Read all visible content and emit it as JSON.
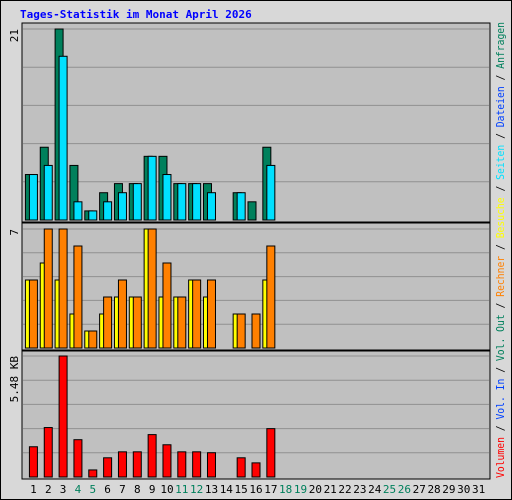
{
  "chart_data": {
    "type": "bar",
    "title": "Tages-Statistik im Monat April 2026",
    "categories": [
      "1",
      "2",
      "3",
      "4",
      "5",
      "6",
      "7",
      "8",
      "9",
      "10",
      "11",
      "12",
      "13",
      "14",
      "15",
      "16",
      "17",
      "18",
      "19",
      "20",
      "21",
      "22",
      "23",
      "24",
      "25",
      "26",
      "27",
      "28",
      "29",
      "30",
      "31"
    ],
    "category_colors": [
      "#000000",
      "#000000",
      "#000000",
      "#00805c",
      "#00805c",
      "#000000",
      "#000000",
      "#000000",
      "#000000",
      "#000000",
      "#00805c",
      "#00805c",
      "#000000",
      "#000000",
      "#000000",
      "#000000",
      "#000000",
      "#00805c",
      "#00805c",
      "#000000",
      "#000000",
      "#000000",
      "#000000",
      "#000000",
      "#00805c",
      "#00805c",
      "#000000",
      "#000000",
      "#000000",
      "#000000",
      "#000000"
    ],
    "legend_separator": " / ",
    "legend": [
      {
        "name": "Volumen",
        "color": "#ff0000"
      },
      {
        "name": "Vol. In",
        "color": "#0040ff"
      },
      {
        "name": "Vol. Out",
        "color": "#00805c"
      },
      {
        "name": "Rechner",
        "color": "#ff8000"
      },
      {
        "name": "Besuche",
        "color": "#ffff00"
      },
      {
        "name": "Seiten",
        "color": "#00e0ff"
      },
      {
        "name": "Dateien",
        "color": "#0040ff"
      },
      {
        "name": "Anfragen",
        "color": "#00805c"
      }
    ],
    "panels": [
      {
        "ylim": [
          0,
          21
        ],
        "yticks": [
          21
        ],
        "series": [
          {
            "name": "Anfragen",
            "color": "#00805c",
            "values": [
              5,
              8,
              21,
              6,
              1,
              3,
              4,
              4,
              7,
              7,
              4,
              4,
              4,
              0,
              3,
              2,
              8,
              0,
              0,
              0,
              0,
              0,
              0,
              0,
              0,
              0,
              0,
              0,
              0,
              0,
              0
            ]
          },
          {
            "name": "Seiten",
            "color": "#00e0ff",
            "values": [
              5,
              6,
              18,
              2,
              1,
              2,
              3,
              4,
              7,
              5,
              4,
              4,
              3,
              0,
              3,
              0,
              6,
              0,
              0,
              0,
              0,
              0,
              0,
              0,
              0,
              0,
              0,
              0,
              0,
              0,
              0
            ]
          }
        ]
      },
      {
        "ylim": [
          0,
          7
        ],
        "yticks": [
          7
        ],
        "series": [
          {
            "name": "Besuche",
            "color": "#ffff00",
            "values": [
              4,
              5,
              4,
              2,
              1,
              2,
              3,
              3,
              7,
              3,
              3,
              4,
              3,
              0,
              2,
              0,
              4,
              0,
              0,
              0,
              0,
              0,
              0,
              0,
              0,
              0,
              0,
              0,
              0,
              0,
              0
            ]
          },
          {
            "name": "Rechner",
            "color": "#ff8000",
            "values": [
              4,
              7,
              7,
              6,
              1,
              3,
              4,
              3,
              7,
              5,
              3,
              4,
              4,
              0,
              2,
              2,
              6,
              0,
              0,
              0,
              0,
              0,
              0,
              0,
              0,
              0,
              0,
              0,
              0,
              0,
              0
            ]
          }
        ]
      },
      {
        "ylim": [
          0,
          5.48
        ],
        "yticks": [
          {
            "value": 5.48,
            "label": "5.48 KB"
          }
        ],
        "series": [
          {
            "name": "Volumen",
            "color": "#ff0000",
            "values": [
              1.37,
              2.24,
              5.48,
              1.69,
              0.32,
              0.87,
              1.14,
              1.14,
              1.92,
              1.46,
              1.14,
              1.14,
              1.1,
              0,
              0.87,
              0.64,
              2.19,
              0,
              0,
              0,
              0,
              0,
              0,
              0,
              0,
              0,
              0,
              0,
              0,
              0,
              0
            ]
          }
        ]
      }
    ]
  }
}
